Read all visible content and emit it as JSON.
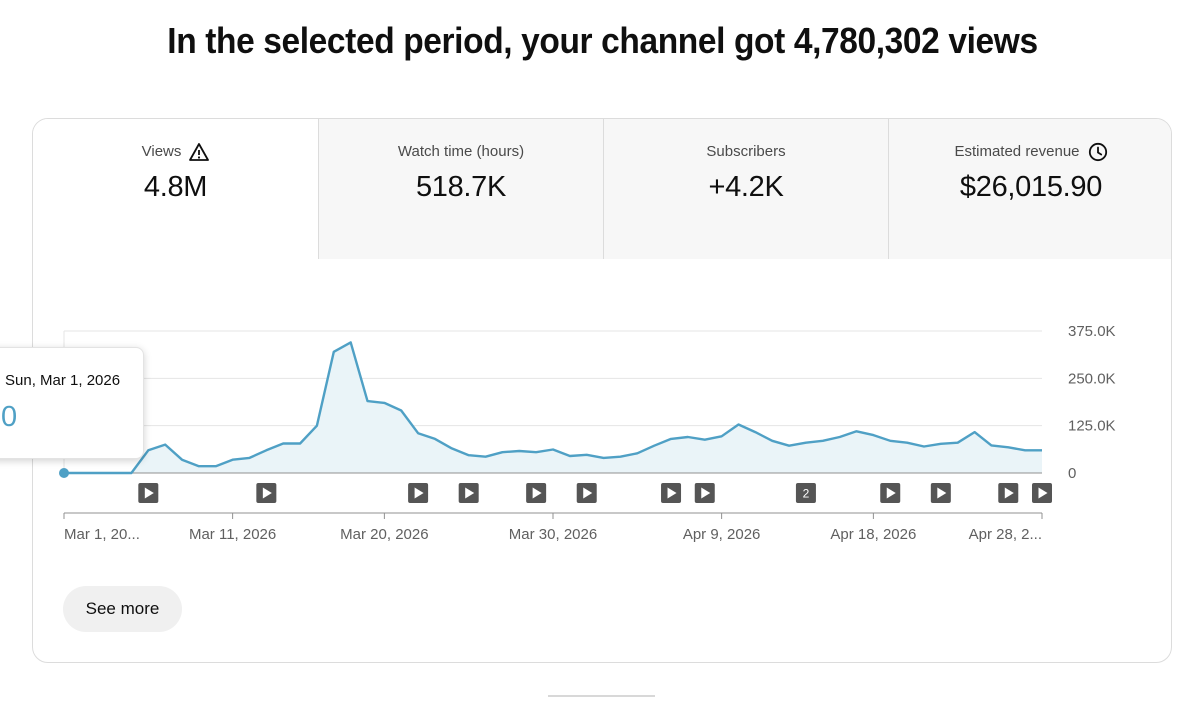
{
  "headline": "In the selected period, your channel got 4,780,302 views",
  "tabs": [
    {
      "label": "Views",
      "value": "4.8M",
      "icon": "warning-icon",
      "active": true
    },
    {
      "label": "Watch time (hours)",
      "value": "518.7K",
      "active": false
    },
    {
      "label": "Subscribers",
      "value": "+4.2K",
      "active": false
    },
    {
      "label": "Estimated revenue",
      "value": "$26,015.90",
      "icon": "clock-icon",
      "active": false
    }
  ],
  "tooltip": {
    "date": "Sun, Mar 1, 2026",
    "value": "0"
  },
  "see_more_label": "See more",
  "colors": {
    "line": "#4fa0c5",
    "fill": "#eaf4f8",
    "marker": "#555555"
  },
  "chart_data": {
    "type": "area",
    "ylim": [
      0,
      375000
    ],
    "yticks": [
      0,
      125000,
      250000,
      375000
    ],
    "ytick_labels": [
      "0",
      "125.0K",
      "250.0K",
      "375.0K"
    ],
    "xtick_labels": [
      {
        "label": "Mar 1, 20...",
        "day": 0
      },
      {
        "label": "Mar 11, 2026",
        "day": 10
      },
      {
        "label": "Mar 20, 2026",
        "day": 19
      },
      {
        "label": "Mar 30, 2026",
        "day": 29
      },
      {
        "label": "Apr 9, 2026",
        "day": 39
      },
      {
        "label": "Apr 18, 2026",
        "day": 48
      },
      {
        "label": "Apr 28, 2...",
        "day": 58
      }
    ],
    "series": [
      {
        "values": [
          0,
          0,
          0,
          0,
          0,
          60000,
          75000,
          35000,
          18000,
          18000,
          35000,
          40000,
          60000,
          78000,
          78000,
          125000,
          320000,
          345000,
          190000,
          185000,
          165000,
          105000,
          90000,
          65000,
          47000,
          43000,
          55000,
          58000,
          55000,
          62000,
          45000,
          48000,
          40000,
          43000,
          52000,
          72000,
          90000,
          95000,
          88000,
          97000,
          128000,
          108000,
          85000,
          72000,
          80000,
          85000,
          95000,
          110000,
          100000,
          85000,
          80000,
          70000,
          77000,
          80000,
          108000,
          73000,
          68000,
          60000,
          60000
        ]
      }
    ],
    "markers": [
      {
        "day": 5,
        "label": ""
      },
      {
        "day": 12,
        "label": ""
      },
      {
        "day": 21,
        "label": ""
      },
      {
        "day": 24,
        "label": ""
      },
      {
        "day": 28,
        "label": ""
      },
      {
        "day": 31,
        "label": ""
      },
      {
        "day": 36,
        "label": ""
      },
      {
        "day": 38,
        "label": ""
      },
      {
        "day": 44,
        "label": "2"
      },
      {
        "day": 49,
        "label": ""
      },
      {
        "day": 52,
        "label": ""
      },
      {
        "day": 56,
        "label": ""
      },
      {
        "day": 58,
        "label": ""
      }
    ]
  }
}
